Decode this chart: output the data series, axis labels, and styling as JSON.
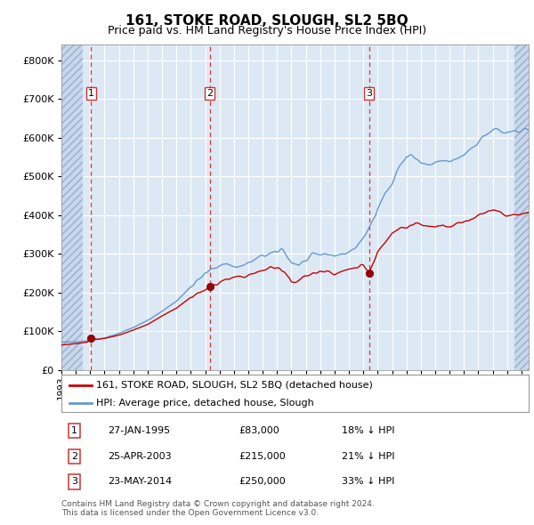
{
  "title": "161, STOKE ROAD, SLOUGH, SL2 5BQ",
  "subtitle": "Price paid vs. HM Land Registry's House Price Index (HPI)",
  "legend_line1": "161, STOKE ROAD, SLOUGH, SL2 5BQ (detached house)",
  "legend_line2": "HPI: Average price, detached house, Slough",
  "footnote1": "Contains HM Land Registry data © Crown copyright and database right 2024.",
  "footnote2": "This data is licensed under the Open Government Licence v3.0.",
  "transactions": [
    {
      "num": 1,
      "date": "27-JAN-1995",
      "date_dec": 1995.07,
      "price": 83000,
      "below_hpi": "18% ↓ HPI"
    },
    {
      "num": 2,
      "date": "25-APR-2003",
      "date_dec": 2003.32,
      "price": 215000,
      "below_hpi": "21% ↓ HPI"
    },
    {
      "num": 3,
      "date": "23-MAY-2014",
      "date_dec": 2014.39,
      "price": 250000,
      "below_hpi": "33% ↓ HPI"
    }
  ],
  "hpi_color": "#6699cc",
  "price_color": "#cc0000",
  "bg_color": "#dce9f5",
  "hatch_bg_color": "#c8d8ec",
  "grid_color": "#ffffff",
  "vline_color": "#dd3333",
  "ylim": [
    0,
    840000
  ],
  "yticks": [
    0,
    100000,
    200000,
    300000,
    400000,
    500000,
    600000,
    700000,
    800000
  ],
  "xlim_start": 1993.0,
  "xlim_end": 2025.5,
  "hatch_left_end": 1994.5,
  "hatch_right_start": 2024.5,
  "hpi_anchors": [
    [
      1993.0,
      72000
    ],
    [
      1994.0,
      73000
    ],
    [
      1995.0,
      76000
    ],
    [
      1996.0,
      83000
    ],
    [
      1997.0,
      95000
    ],
    [
      1998.0,
      110000
    ],
    [
      1999.0,
      128000
    ],
    [
      2000.0,
      152000
    ],
    [
      2001.0,
      178000
    ],
    [
      2002.0,
      215000
    ],
    [
      2003.0,
      248000
    ],
    [
      2003.5,
      262000
    ],
    [
      2004.0,
      271000
    ],
    [
      2004.5,
      275000
    ],
    [
      2005.0,
      267000
    ],
    [
      2005.5,
      268000
    ],
    [
      2006.0,
      276000
    ],
    [
      2006.5,
      285000
    ],
    [
      2007.0,
      295000
    ],
    [
      2007.5,
      300000
    ],
    [
      2008.0,
      302000
    ],
    [
      2008.3,
      315000
    ],
    [
      2008.7,
      295000
    ],
    [
      2009.0,
      278000
    ],
    [
      2009.5,
      272000
    ],
    [
      2010.0,
      282000
    ],
    [
      2010.5,
      295000
    ],
    [
      2011.0,
      298000
    ],
    [
      2011.5,
      300000
    ],
    [
      2012.0,
      296000
    ],
    [
      2012.5,
      298000
    ],
    [
      2013.0,
      305000
    ],
    [
      2013.5,
      318000
    ],
    [
      2014.0,
      338000
    ],
    [
      2014.5,
      375000
    ],
    [
      2015.0,
      420000
    ],
    [
      2015.5,
      455000
    ],
    [
      2016.0,
      480000
    ],
    [
      2016.3,
      510000
    ],
    [
      2016.6,
      530000
    ],
    [
      2017.0,
      550000
    ],
    [
      2017.3,
      558000
    ],
    [
      2017.6,
      545000
    ],
    [
      2018.0,
      535000
    ],
    [
      2018.5,
      528000
    ],
    [
      2019.0,
      532000
    ],
    [
      2019.5,
      540000
    ],
    [
      2020.0,
      538000
    ],
    [
      2020.3,
      540000
    ],
    [
      2020.6,
      548000
    ],
    [
      2021.0,
      556000
    ],
    [
      2021.3,
      568000
    ],
    [
      2021.6,
      576000
    ],
    [
      2022.0,
      590000
    ],
    [
      2022.3,
      600000
    ],
    [
      2022.6,
      610000
    ],
    [
      2023.0,
      618000
    ],
    [
      2023.3,
      622000
    ],
    [
      2023.6,
      615000
    ],
    [
      2024.0,
      608000
    ],
    [
      2024.3,
      612000
    ],
    [
      2024.6,
      618000
    ],
    [
      2025.0,
      620000
    ]
  ],
  "price_anchors": [
    [
      1993.0,
      65000
    ],
    [
      1994.0,
      68000
    ],
    [
      1994.8,
      72000
    ],
    [
      1995.07,
      83000
    ],
    [
      1995.5,
      80000
    ],
    [
      1996.0,
      82000
    ],
    [
      1997.0,
      90000
    ],
    [
      1998.0,
      103000
    ],
    [
      1999.0,
      118000
    ],
    [
      2000.0,
      140000
    ],
    [
      2001.0,
      160000
    ],
    [
      2002.0,
      188000
    ],
    [
      2003.0,
      208000
    ],
    [
      2003.32,
      215000
    ],
    [
      2003.8,
      222000
    ],
    [
      2004.0,
      228000
    ],
    [
      2004.5,
      232000
    ],
    [
      2005.0,
      238000
    ],
    [
      2005.5,
      242000
    ],
    [
      2006.0,
      245000
    ],
    [
      2006.5,
      250000
    ],
    [
      2007.0,
      258000
    ],
    [
      2007.5,
      265000
    ],
    [
      2008.0,
      262000
    ],
    [
      2008.5,
      258000
    ],
    [
      2009.0,
      228000
    ],
    [
      2009.5,
      232000
    ],
    [
      2010.0,
      242000
    ],
    [
      2010.5,
      250000
    ],
    [
      2011.0,
      253000
    ],
    [
      2011.5,
      258000
    ],
    [
      2012.0,
      250000
    ],
    [
      2012.5,
      254000
    ],
    [
      2013.0,
      260000
    ],
    [
      2013.5,
      266000
    ],
    [
      2014.0,
      272000
    ],
    [
      2014.39,
      250000
    ],
    [
      2014.6,
      265000
    ],
    [
      2015.0,
      305000
    ],
    [
      2015.3,
      318000
    ],
    [
      2015.6,
      335000
    ],
    [
      2016.0,
      355000
    ],
    [
      2016.3,
      365000
    ],
    [
      2016.6,
      372000
    ],
    [
      2017.0,
      368000
    ],
    [
      2017.3,
      374000
    ],
    [
      2017.6,
      378000
    ],
    [
      2018.0,
      375000
    ],
    [
      2018.5,
      370000
    ],
    [
      2019.0,
      368000
    ],
    [
      2019.5,
      375000
    ],
    [
      2020.0,
      372000
    ],
    [
      2020.5,
      378000
    ],
    [
      2021.0,
      382000
    ],
    [
      2021.5,
      390000
    ],
    [
      2022.0,
      400000
    ],
    [
      2022.5,
      410000
    ],
    [
      2023.0,
      415000
    ],
    [
      2023.5,
      408000
    ],
    [
      2024.0,
      398000
    ],
    [
      2024.5,
      402000
    ],
    [
      2025.0,
      405000
    ]
  ],
  "noise_seed_hpi": 42,
  "noise_seed_price": 123
}
